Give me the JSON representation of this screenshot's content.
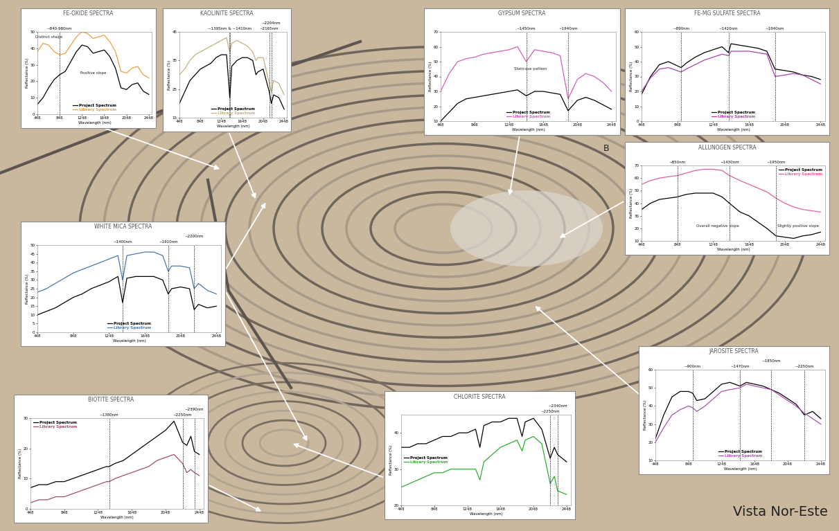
{
  "chart_data": [
    {
      "type": "line",
      "title": "FE-OXIDE SPECTRA",
      "xlabel": "Wavelength (nm)",
      "ylabel": "Reflectance (%)",
      "x": [
        448,
        548,
        648,
        748,
        848,
        948,
        1048,
        1148,
        1248,
        1348,
        1448,
        1548,
        1648,
        1748,
        1848,
        1948,
        2048,
        2148,
        2248,
        2348,
        2448
      ],
      "xlim": [
        448,
        2500
      ],
      "xticks": [
        448,
        848,
        1248,
        1648,
        2048,
        2448
      ],
      "ylim": [
        0,
        50
      ],
      "yticks": [
        0,
        10,
        20,
        30,
        40,
        50
      ],
      "legend": "lower center",
      "series": [
        {
          "name": "Project Spectrum",
          "color": "#000000",
          "values": [
            6,
            10,
            16,
            21,
            24,
            26,
            32,
            38,
            42,
            41,
            37,
            38,
            39,
            35,
            28,
            16,
            15,
            18,
            19,
            14,
            12
          ]
        },
        {
          "name": "Library Spectrum",
          "color": "#f0a040",
          "values": [
            38,
            43,
            42,
            38,
            36,
            37,
            42,
            47,
            50,
            49,
            46,
            47,
            48,
            44,
            38,
            26,
            25,
            28,
            29,
            24,
            22
          ]
        }
      ],
      "annotations": [
        {
          "x": 848,
          "label": "~840-980nm"
        },
        {
          "text": "Distinct shape",
          "x": 650,
          "y": 47
        },
        {
          "text": "Positive slope",
          "x": 1450,
          "y": 25
        }
      ]
    },
    {
      "type": "line",
      "title": "KAOLINITE SPECTRA",
      "xlabel": "Wavelength (nm)",
      "ylabel": "Reflectance (%)",
      "x": [
        448,
        548,
        648,
        748,
        848,
        948,
        1048,
        1148,
        1248,
        1348,
        1395,
        1410,
        1448,
        1548,
        1648,
        1748,
        1848,
        1910,
        1948,
        2048,
        2165,
        2204,
        2248,
        2348,
        2448
      ],
      "xlim": [
        448,
        2500
      ],
      "xticks": [
        448,
        848,
        1248,
        1648,
        2048,
        2448
      ],
      "ylim": [
        15,
        45
      ],
      "yticks": [
        15,
        25,
        35,
        45
      ],
      "legend": "lower center",
      "series": [
        {
          "name": "Project Spectrum",
          "color": "#000000",
          "values": [
            20,
            24,
            28,
            30,
            32,
            33,
            34,
            36,
            37,
            37,
            26,
            22,
            33,
            35,
            36,
            36,
            35,
            30,
            31,
            32,
            24,
            20,
            23,
            22,
            18
          ]
        },
        {
          "name": "Library Spectrum",
          "color": "#c2b280",
          "values": [
            30,
            32,
            35,
            37,
            38,
            39,
            40,
            41,
            42,
            43,
            39,
            38,
            41,
            42,
            41,
            40,
            38,
            35,
            36,
            36,
            27,
            24,
            28,
            27,
            23
          ]
        }
      ],
      "annotations": [
        {
          "x": [
            1395,
            1410
          ],
          "label": "~1395nm & ~1410nm"
        },
        {
          "x": 2165,
          "label": "~2165nm"
        },
        {
          "x": 2204,
          "label": "~2204nm"
        }
      ]
    },
    {
      "type": "line",
      "title": "GYPSUM SPECTRA",
      "xlabel": "Wavelength (nm)",
      "ylabel": "Reflectance (%)",
      "x": [
        448,
        548,
        648,
        748,
        848,
        948,
        1048,
        1148,
        1248,
        1348,
        1450,
        1548,
        1648,
        1748,
        1848,
        1940,
        2048,
        2148,
        2248,
        2348,
        2448
      ],
      "xlim": [
        448,
        2500
      ],
      "xticks": [
        448,
        848,
        1248,
        1648,
        2048,
        2448
      ],
      "ylim": [
        10,
        70
      ],
      "yticks": [
        10,
        20,
        30,
        40,
        50,
        60,
        70
      ],
      "legend": "lower center",
      "series": [
        {
          "name": "Project Spectrum",
          "color": "#000000",
          "values": [
            10,
            16,
            22,
            25,
            26,
            27,
            28,
            29,
            30,
            31,
            27,
            30,
            30,
            29,
            28,
            17,
            24,
            26,
            24,
            21,
            18
          ]
        },
        {
          "name": "Library Spectrum",
          "color": "#d060c0",
          "values": [
            30,
            42,
            50,
            52,
            53,
            55,
            56,
            57,
            58,
            60,
            50,
            58,
            57,
            56,
            54,
            25,
            38,
            42,
            40,
            36,
            30
          ]
        }
      ],
      "annotations": [
        {
          "x": 1450,
          "label": "~1450nm"
        },
        {
          "x": 1940,
          "label": "~1940nm"
        },
        {
          "text": "Staircase pattern",
          "x": 1500,
          "y": 45
        }
      ]
    },
    {
      "type": "line",
      "title": "FE-MG SULFATE SPECTRA",
      "xlabel": "Wavelength (nm)",
      "ylabel": "Reflectance (%)",
      "x": [
        448,
        548,
        648,
        748,
        890,
        948,
        1048,
        1148,
        1248,
        1348,
        1420,
        1448,
        1548,
        1648,
        1748,
        1848,
        1940,
        2048,
        2148,
        2248,
        2348,
        2448
      ],
      "xlim": [
        448,
        2500
      ],
      "xticks": [
        448,
        848,
        1248,
        1648,
        2048,
        2448
      ],
      "ylim": [
        0,
        60
      ],
      "yticks": [
        0,
        10,
        20,
        30,
        40,
        50,
        60
      ],
      "legend": "lower center",
      "series": [
        {
          "name": "Project Spectrum",
          "color": "#000000",
          "values": [
            18,
            30,
            38,
            40,
            36,
            39,
            43,
            46,
            48,
            50,
            46,
            52,
            51,
            50,
            49,
            47,
            35,
            34,
            33,
            31,
            30,
            28
          ]
        },
        {
          "name": "Library Spectrum",
          "color": "#b040b0",
          "values": [
            20,
            29,
            35,
            36,
            33,
            35,
            38,
            41,
            43,
            45,
            44,
            47,
            47,
            47,
            46,
            45,
            30,
            31,
            32,
            31,
            28,
            25
          ]
        }
      ],
      "annotations": [
        {
          "x": 890,
          "label": "~890nm"
        },
        {
          "x": 1420,
          "label": "~1420nm"
        },
        {
          "x": 1940,
          "label": "~1940nm"
        }
      ]
    },
    {
      "type": "line",
      "title": "ALLUNOGEN SPECTRA",
      "xlabel": "Wavelength (nm)",
      "ylabel": "Reflectance (%)",
      "x": [
        448,
        548,
        648,
        748,
        850,
        948,
        1048,
        1148,
        1248,
        1348,
        1430,
        1548,
        1648,
        1748,
        1848,
        1950,
        2048,
        2148,
        2248,
        2348,
        2448
      ],
      "xlim": [
        448,
        2500
      ],
      "xticks": [
        448,
        848,
        1248,
        1648,
        2048,
        2448
      ],
      "ylim": [
        10,
        70
      ],
      "yticks": [
        10,
        20,
        30,
        40,
        50,
        60,
        70
      ],
      "legend": "upper right",
      "series": [
        {
          "name": "Project Spectrum",
          "color": "#000000",
          "values": [
            35,
            40,
            43,
            44,
            45,
            47,
            48,
            48,
            48,
            45,
            40,
            33,
            30,
            25,
            20,
            14,
            13,
            12,
            14,
            15,
            17
          ]
        },
        {
          "name": "Library Spectrum",
          "color": "#e060a0",
          "values": [
            55,
            58,
            60,
            61,
            62,
            64,
            66,
            67,
            67,
            66,
            62,
            58,
            55,
            52,
            49,
            44,
            40,
            37,
            35,
            34,
            33
          ]
        }
      ],
      "annotations": [
        {
          "x": 850,
          "label": "~850nm"
        },
        {
          "x": 1430,
          "label": "~1430nm"
        },
        {
          "x": 1950,
          "label": "~1950nm"
        },
        {
          "text": "Overall negative slope",
          "x": 1300,
          "y": 22
        },
        {
          "text": "Slightly positive slope",
          "x": 2200,
          "y": 22
        }
      ]
    },
    {
      "type": "line",
      "title": "WHITE MICA SPECTRA",
      "xlabel": "Wavelength (nm)",
      "ylabel": "Reflectance (%)",
      "x": [
        448,
        548,
        648,
        748,
        848,
        948,
        1048,
        1148,
        1248,
        1348,
        1400,
        1448,
        1548,
        1648,
        1748,
        1848,
        1910,
        1948,
        2048,
        2148,
        2200,
        2248,
        2348,
        2448
      ],
      "xlim": [
        448,
        2500
      ],
      "xticks": [
        448,
        848,
        1248,
        1648,
        2048,
        2448
      ],
      "ylim": [
        0,
        50
      ],
      "yticks": [
        0,
        5,
        10,
        15,
        20,
        25,
        30,
        35,
        40,
        45,
        50
      ],
      "legend": "lower center",
      "series": [
        {
          "name": "Project Spectrum",
          "color": "#000000",
          "values": [
            10,
            12,
            14,
            17,
            20,
            22,
            25,
            27,
            29,
            32,
            17,
            31,
            32,
            32,
            32,
            30,
            22,
            25,
            26,
            25,
            13,
            16,
            14,
            15
          ]
        },
        {
          "name": "Library Spectrum",
          "color": "#4a78b0",
          "values": [
            23,
            25,
            28,
            31,
            34,
            36,
            38,
            40,
            42,
            44,
            30,
            44,
            45,
            46,
            46,
            44,
            35,
            38,
            38,
            37,
            25,
            28,
            24,
            22
          ]
        }
      ],
      "annotations": [
        {
          "x": 1400,
          "label": "~1400nm"
        },
        {
          "x": 1910,
          "label": "~1910nm"
        },
        {
          "x": 2200,
          "label": "~2200nm"
        }
      ]
    },
    {
      "type": "line",
      "title": "JAROSITE SPECTRA",
      "xlabel": "Wavelength (nm)",
      "ylabel": "Reflectance (%)",
      "x": [
        448,
        548,
        648,
        748,
        848,
        900,
        948,
        1048,
        1148,
        1248,
        1348,
        1470,
        1548,
        1648,
        1748,
        1850,
        1948,
        2048,
        2148,
        2250,
        2348,
        2448
      ],
      "xlim": [
        448,
        2500
      ],
      "xticks": [
        448,
        848,
        1248,
        1648,
        2048,
        2448
      ],
      "ylim": [
        10,
        60
      ],
      "yticks": [
        10,
        20,
        30,
        40,
        50,
        60
      ],
      "legend": "lower center",
      "series": [
        {
          "name": "Project Spectrum",
          "color": "#000000",
          "values": [
            22,
            35,
            45,
            48,
            48,
            47,
            43,
            44,
            48,
            52,
            53,
            51,
            53,
            52,
            51,
            49,
            47,
            44,
            41,
            35,
            37,
            33
          ]
        },
        {
          "name": "Library Spectrum",
          "color": "#b050b0",
          "values": [
            20,
            28,
            35,
            38,
            40,
            39,
            37,
            40,
            44,
            48,
            49,
            50,
            52,
            51,
            50,
            49,
            46,
            43,
            40,
            36,
            33,
            30
          ]
        }
      ],
      "annotations": [
        {
          "x": 900,
          "label": "~900nm"
        },
        {
          "x": 1470,
          "label": "~1470nm"
        },
        {
          "x": 1850,
          "label": "~1850nm"
        },
        {
          "x": 2250,
          "label": "~2250nm"
        }
      ]
    },
    {
      "type": "line",
      "title": "BIOTITE SPECTRA",
      "xlabel": "Wavelength (nm)",
      "ylabel": "Reflectance (%)",
      "x": [
        448,
        548,
        648,
        748,
        848,
        948,
        1048,
        1148,
        1248,
        1348,
        1380,
        1448,
        1548,
        1648,
        1748,
        1848,
        1948,
        2048,
        2148,
        2250,
        2300,
        2348,
        2390,
        2448
      ],
      "xlim": [
        448,
        2500
      ],
      "xticks": [
        448,
        848,
        1248,
        1648,
        2048,
        2448
      ],
      "ylim": [
        0,
        30
      ],
      "yticks": [
        0,
        10,
        20,
        30
      ],
      "legend": "upper left",
      "series": [
        {
          "name": "Project Spectrum",
          "color": "#000000",
          "values": [
            7,
            8,
            8,
            9,
            9,
            10,
            11,
            12,
            13,
            14,
            14,
            15,
            16,
            18,
            20,
            22,
            24,
            26,
            29,
            22,
            21,
            24,
            19,
            18
          ]
        },
        {
          "name": "Library Spectrum",
          "color": "#a05060",
          "values": [
            2,
            3,
            3,
            4,
            4,
            5,
            6,
            7,
            8,
            9,
            9,
            10,
            11,
            12,
            13,
            14,
            16,
            17,
            18,
            15,
            12,
            13,
            12,
            11
          ]
        }
      ],
      "annotations": [
        {
          "x": 1380,
          "label": "~1380nm"
        },
        {
          "x": 2250,
          "label": "~2250nm"
        },
        {
          "x": 2390,
          "label": "~2390nm"
        }
      ]
    },
    {
      "type": "line",
      "title": "CHLORITE SPECTRA",
      "xlabel": "Wavelength (nm)",
      "ylabel": "Reflectance (%)",
      "x": [
        448,
        548,
        648,
        748,
        848,
        948,
        1048,
        1148,
        1248,
        1348,
        1400,
        1448,
        1548,
        1648,
        1748,
        1848,
        1910,
        1948,
        2048,
        2148,
        2250,
        2300,
        2340,
        2448
      ],
      "xlim": [
        448,
        2500
      ],
      "xticks": [
        448,
        848,
        1248,
        1648,
        2048,
        2448
      ],
      "ylim": [
        20,
        45
      ],
      "yticks": [
        20,
        30,
        40
      ],
      "legend": "center left",
      "series": [
        {
          "name": "Project Spectrum",
          "color": "#000000",
          "values": [
            36,
            36,
            37,
            37,
            38,
            39,
            39,
            40,
            40,
            41,
            36,
            42,
            43,
            43,
            44,
            44,
            39,
            43,
            44,
            41,
            33,
            36,
            34,
            32
          ]
        },
        {
          "name": "Library Spectrum",
          "color": "#30b030",
          "values": [
            25,
            26,
            27,
            28,
            29,
            29,
            30,
            30,
            30,
            30,
            27,
            32,
            34,
            36,
            37,
            38,
            35,
            38,
            39,
            37,
            26,
            28,
            24,
            23
          ]
        }
      ],
      "annotations": [
        {
          "x": 2250,
          "label": "~2250nm"
        },
        {
          "x": 2340,
          "label": "~2340nm"
        }
      ]
    }
  ],
  "texts": {
    "caption": "Vista Nor-Este",
    "label": "B"
  }
}
